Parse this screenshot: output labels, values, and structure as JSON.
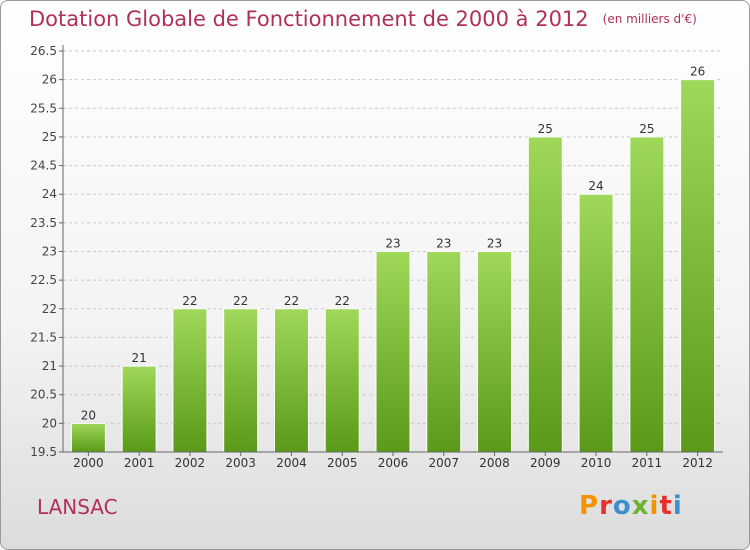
{
  "header": {
    "title": "Dotation Globale de Fonctionnement de 2000 à 2012",
    "unit": "(en milliers d'€)"
  },
  "footer": {
    "commune": "LANSAC",
    "brand": "Proxiti",
    "brand_colors": [
      "#f29400",
      "#e7302a",
      "#3d8fd0",
      "#6bb32e",
      "#f29400",
      "#e7302a",
      "#3d8fd0"
    ]
  },
  "colors": {
    "title": "#b0305a",
    "bar_light": "#9fd85a",
    "bar_dark": "#5a9a18",
    "grid": "#c8c8c8",
    "axis": "#666666"
  },
  "chart_data": {
    "type": "bar",
    "categories": [
      "2000",
      "2001",
      "2002",
      "2003",
      "2004",
      "2005",
      "2006",
      "2007",
      "2008",
      "2009",
      "2010",
      "2011",
      "2012"
    ],
    "values": [
      20,
      21,
      22,
      22,
      22,
      22,
      23,
      23,
      23,
      25,
      24,
      25,
      26
    ],
    "data_labels": [
      "20",
      "21",
      "22",
      "22",
      "22",
      "22",
      "23",
      "23",
      "23",
      "25",
      "24",
      "25",
      "26"
    ],
    "yticks": [
      "19.5",
      "20",
      "20.5",
      "21",
      "21.5",
      "22",
      "22.5",
      "23",
      "23.5",
      "24",
      "24.5",
      "25",
      "25.5",
      "26",
      "26.5"
    ],
    "ylim": [
      19.5,
      26.5
    ],
    "grid": true,
    "legend": "none"
  }
}
